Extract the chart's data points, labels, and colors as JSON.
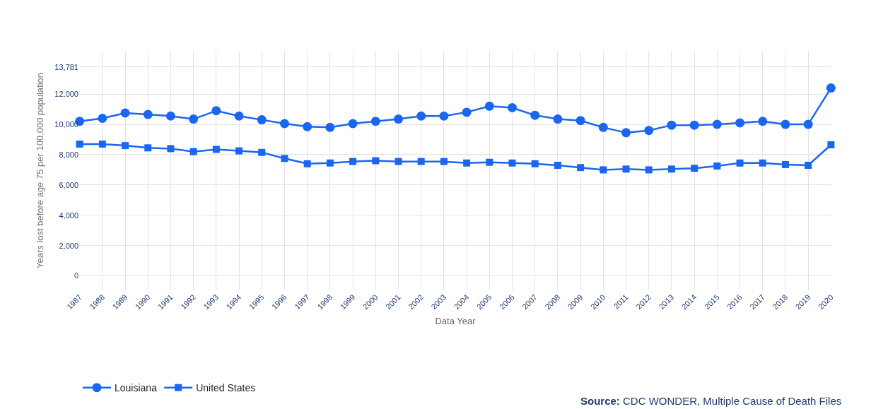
{
  "chart_data": {
    "type": "line",
    "xlabel": "Data Year",
    "ylabel": "Years lost before age 75 per 100,000 population",
    "categories": [
      "1987",
      "1988",
      "1989",
      "1990",
      "1991",
      "1992",
      "1993",
      "1994",
      "1995",
      "1996",
      "1997",
      "1998",
      "1999",
      "2000",
      "2001",
      "2002",
      "2003",
      "2004",
      "2005",
      "2006",
      "2007",
      "2008",
      "2009",
      "2010",
      "2011",
      "2012",
      "2013",
      "2014",
      "2015",
      "2016",
      "2017",
      "2018",
      "2019",
      "2020"
    ],
    "series": [
      {
        "name": "Louisiana",
        "color": "#1a66f0",
        "marker": "circle",
        "values": [
          10200,
          10400,
          10750,
          10650,
          10550,
          10350,
          10900,
          10550,
          10300,
          10050,
          9850,
          9800,
          10050,
          10200,
          10350,
          10550,
          10550,
          10800,
          11200,
          11100,
          10600,
          10350,
          10250,
          9800,
          9450,
          9600,
          9950,
          9950,
          10000,
          10100,
          10200,
          10000,
          10000,
          12400
        ]
      },
      {
        "name": "United States",
        "color": "#1a66f0",
        "marker": "square",
        "values": [
          8700,
          8700,
          8600,
          8450,
          8400,
          8200,
          8350,
          8250,
          8150,
          7750,
          7400,
          7450,
          7550,
          7600,
          7550,
          7550,
          7550,
          7450,
          7500,
          7450,
          7400,
          7300,
          7150,
          7000,
          7050,
          7000,
          7050,
          7100,
          7250,
          7450,
          7450,
          7350,
          7300,
          8650
        ]
      }
    ],
    "ylim": [
      -950,
      14850
    ],
    "yticks": [
      0,
      {
        "value": 2000,
        "label": "2,000"
      },
      {
        "value": 4000,
        "label": "4,000"
      },
      {
        "value": 6000,
        "label": "6,000"
      },
      {
        "value": 8000,
        "label": "8,000"
      },
      {
        "value": 10000,
        "label": "10,000"
      },
      {
        "value": 12000,
        "label": "12,000"
      },
      {
        "value": 13781,
        "label": "13,781"
      }
    ],
    "grid": true,
    "legend": "bottom left",
    "line_style": "solid",
    "annotations": [
      "Source: CDC WONDER, Multiple Cause of Death Files"
    ]
  }
}
